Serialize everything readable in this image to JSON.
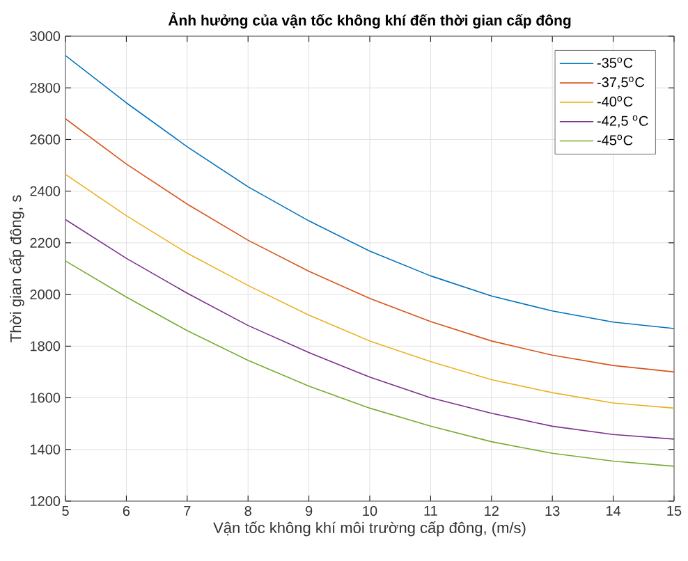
{
  "chart_data": {
    "type": "line",
    "title": "Ảnh hưởng của vận tốc không khí đến thời gian cấp đông",
    "xlabel": "Vận tốc không khí môi trường cấp đông, (m/s)",
    "ylabel": "Thời gian cấp đông, s",
    "x": [
      5,
      6,
      7,
      8,
      9,
      10,
      11,
      12,
      13,
      14,
      15
    ],
    "series": [
      {
        "name": "-35$^{o}$C",
        "color": "#0072bd",
        "values": [
          2925,
          2742,
          2572,
          2417,
          2285,
          2168,
          2072,
          1994,
          1936,
          1893,
          1868
        ]
      },
      {
        "name": "-37,5$^{o}$C",
        "color": "#d95319",
        "values": [
          2680,
          2505,
          2350,
          2210,
          2090,
          1985,
          1895,
          1820,
          1765,
          1725,
          1700
        ]
      },
      {
        "name": "-40$^{o}$C",
        "color": "#edb120",
        "values": [
          2465,
          2305,
          2160,
          2035,
          1920,
          1820,
          1740,
          1670,
          1620,
          1580,
          1560
        ]
      },
      {
        "name": "-42,5 $^{o}$C",
        "color": "#7e2f8e",
        "values": [
          2290,
          2140,
          2005,
          1880,
          1775,
          1680,
          1600,
          1540,
          1490,
          1458,
          1440
        ]
      },
      {
        "name": "-45$^{o}$C",
        "color": "#77ac30",
        "values": [
          2130,
          1990,
          1860,
          1745,
          1645,
          1560,
          1490,
          1430,
          1385,
          1355,
          1335
        ]
      }
    ],
    "xlim": [
      5,
      15
    ],
    "ylim": [
      1200,
      3000
    ],
    "xticks": [
      5,
      6,
      7,
      8,
      9,
      10,
      11,
      12,
      13,
      14,
      15
    ],
    "yticks": [
      1200,
      1400,
      1600,
      1800,
      2000,
      2200,
      2400,
      2600,
      2800,
      3000
    ],
    "grid": true,
    "legend": "top right",
    "line_style": "solid",
    "marker": "none"
  }
}
